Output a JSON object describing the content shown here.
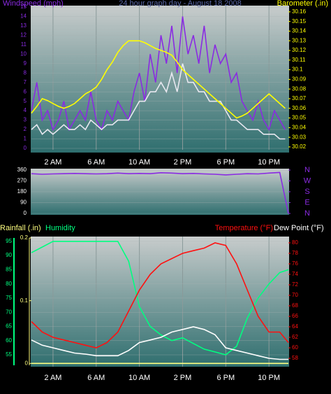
{
  "chart_data": [
    {
      "type": "line",
      "title": "24 hour graph day - August 18 2008",
      "x": [
        0,
        0.5,
        1,
        1.5,
        2,
        2.5,
        3,
        3.5,
        4,
        4.5,
        5,
        5.5,
        6,
        6.5,
        7,
        7.5,
        8,
        8.5,
        9,
        9.5,
        10,
        10.5,
        11,
        11.5,
        12,
        12.5,
        13,
        13.5,
        14,
        14.5,
        15,
        15.5,
        16,
        16.5,
        17,
        17.5,
        18,
        18.5,
        19,
        19.5,
        20,
        20.5,
        21,
        21.5,
        22,
        22.5,
        23,
        23.5
      ],
      "xlim": [
        0,
        23.8
      ],
      "xticks": [
        {
          "value": 2,
          "label": "2 AM"
        },
        {
          "value": 6,
          "label": "6 AM"
        },
        {
          "value": 10,
          "label": "10 AM"
        },
        {
          "value": 14,
          "label": "2 PM"
        },
        {
          "value": 18,
          "label": "6 PM"
        },
        {
          "value": 22,
          "label": "10 PM"
        }
      ],
      "ylim": [
        0,
        15
      ],
      "yticks": [
        0,
        1,
        2,
        3,
        4,
        5,
        6,
        7,
        8,
        9,
        10,
        11,
        12,
        13,
        14,
        15
      ],
      "y2lim": [
        30.0185,
        30.165
      ],
      "y2ticks": [
        30.02,
        30.03,
        30.04,
        30.05,
        30.06,
        30.07,
        30.08,
        30.09,
        30.1,
        30.11,
        30.12,
        30.13,
        30.14,
        30.15,
        30.16
      ],
      "grid": true,
      "series": [
        {
          "name": "Windspeed (mph)",
          "color": "#8a2be2",
          "values": [
            4,
            7,
            3,
            4,
            2,
            3,
            5,
            2,
            3,
            4,
            3,
            6,
            3,
            2,
            4,
            3,
            5,
            4,
            3,
            6,
            8,
            5,
            10,
            7,
            12,
            9,
            13,
            8,
            14,
            10,
            12,
            9,
            13,
            8,
            11,
            9,
            10,
            7,
            8,
            5,
            4,
            3,
            5,
            3,
            2,
            4,
            3,
            2
          ]
        },
        {
          "color": "#e8e8f0",
          "values": [
            2,
            2.5,
            1.5,
            2,
            1.5,
            2,
            2.5,
            2,
            2,
            2.5,
            2,
            3,
            2.5,
            2,
            2.5,
            2.5,
            3,
            3,
            3,
            4,
            5,
            5,
            6,
            6,
            7,
            6,
            8,
            6,
            9,
            7,
            7,
            6,
            6,
            5,
            5,
            5,
            4,
            3,
            3,
            2.5,
            2,
            2,
            2,
            1.5,
            1.5,
            1.5,
            1,
            1
          ]
        },
        {
          "name": "Barometer (.in)",
          "color": "#ffff00",
          "axis": "y2",
          "values": [
            30.055,
            30.062,
            30.07,
            30.068,
            30.065,
            30.062,
            30.06,
            30.062,
            30.065,
            30.07,
            30.075,
            30.078,
            30.082,
            30.09,
            30.1,
            30.108,
            30.118,
            30.125,
            30.13,
            30.13,
            30.13,
            30.128,
            30.125,
            30.122,
            30.12,
            30.118,
            30.115,
            30.108,
            30.1,
            30.095,
            30.09,
            30.085,
            30.08,
            30.075,
            30.07,
            30.065,
            30.06,
            30.055,
            30.05,
            30.052,
            30.055,
            30.06,
            30.065,
            30.07,
            30.075,
            30.07,
            30.065,
            30.06
          ]
        }
      ]
    },
    {
      "type": "line",
      "x": [
        0,
        1,
        2,
        3,
        4,
        5,
        6,
        7,
        8,
        9,
        10,
        11,
        12,
        13,
        14,
        15,
        16,
        17,
        18,
        19,
        20,
        21,
        22,
        23,
        23.8
      ],
      "xlim": [
        0,
        23.8
      ],
      "ylim": [
        0,
        360
      ],
      "yticks": [
        0,
        90,
        180,
        270,
        360
      ],
      "y2lim": [
        0,
        360
      ],
      "y2ticks": [
        {
          "value": 360,
          "label": "N"
        },
        {
          "value": 270,
          "label": "W"
        },
        {
          "value": 180,
          "label": "S"
        },
        {
          "value": 90,
          "label": "E"
        },
        {
          "value": 0,
          "label": "N"
        }
      ],
      "grid": true,
      "series": [
        {
          "color": "#8a2be2",
          "axis": "y2",
          "values": [
            330,
            325,
            328,
            330,
            332,
            330,
            328,
            330,
            335,
            330,
            332,
            330,
            338,
            335,
            330,
            332,
            328,
            325,
            320,
            325,
            330,
            328,
            335,
            340,
            0
          ]
        }
      ]
    },
    {
      "type": "line",
      "x": [
        0,
        1,
        2,
        3,
        4,
        5,
        6,
        7,
        8,
        9,
        10,
        11,
        12,
        13,
        14,
        15,
        16,
        17,
        18,
        19,
        20,
        21,
        22,
        23,
        23.8
      ],
      "xlim": [
        0,
        23.8
      ],
      "xticks": [
        {
          "value": 2,
          "label": "2 AM"
        },
        {
          "value": 6,
          "label": "6 AM"
        },
        {
          "value": 10,
          "label": "10 AM"
        },
        {
          "value": 14,
          "label": "2 PM"
        },
        {
          "value": 18,
          "label": "6 PM"
        },
        {
          "value": 22,
          "label": "10 PM"
        }
      ],
      "ylim": [
        51.3,
        96.2
      ],
      "yticks": [
        55,
        60,
        65,
        70,
        75,
        80,
        85,
        90,
        95
      ],
      "y2lim": [
        56.67,
        80.93
      ],
      "y2ticks": [
        58,
        60,
        62,
        64,
        66,
        68,
        70,
        72,
        74,
        76,
        78,
        80
      ],
      "y3lim": [
        -0.003,
        0.2
      ],
      "y3ticks": [
        0,
        0.1,
        0.2
      ],
      "grid": true,
      "series": [
        {
          "name": "Rainfall (.in)",
          "color": "#ffff80",
          "axis": "y3",
          "values": [
            0,
            0,
            0,
            0,
            0,
            0,
            0,
            0,
            0,
            0,
            0,
            0,
            0,
            0,
            0,
            0,
            0,
            0,
            0,
            0,
            0,
            0,
            0,
            0,
            0
          ]
        },
        {
          "name": "Humidity",
          "color": "#00ff80",
          "values": [
            91,
            93,
            95,
            95,
            95,
            95,
            95,
            95,
            95,
            88,
            72,
            65,
            62,
            60,
            61,
            59,
            57,
            56,
            55,
            58,
            68,
            75,
            80,
            84,
            85
          ]
        },
        {
          "name": "Temperature (°F)",
          "color": "#ff1010",
          "axis": "y2",
          "values": [
            65,
            63,
            62,
            61.5,
            61,
            60.5,
            60,
            61,
            63,
            67,
            71,
            74,
            76,
            77,
            78,
            78.5,
            79,
            80,
            79.5,
            76,
            71,
            66,
            63,
            63,
            61
          ]
        },
        {
          "name": "Dew Point (°F)",
          "color": "#ffffff",
          "axis": "y2",
          "values": [
            61.5,
            60.5,
            60,
            59.5,
            59,
            58.8,
            58.5,
            58.5,
            58.5,
            59.5,
            61,
            61.5,
            62,
            63,
            63.5,
            64,
            63.5,
            62.5,
            60,
            59.5,
            59,
            58.5,
            58,
            57.8,
            57.8
          ]
        }
      ]
    }
  ]
}
